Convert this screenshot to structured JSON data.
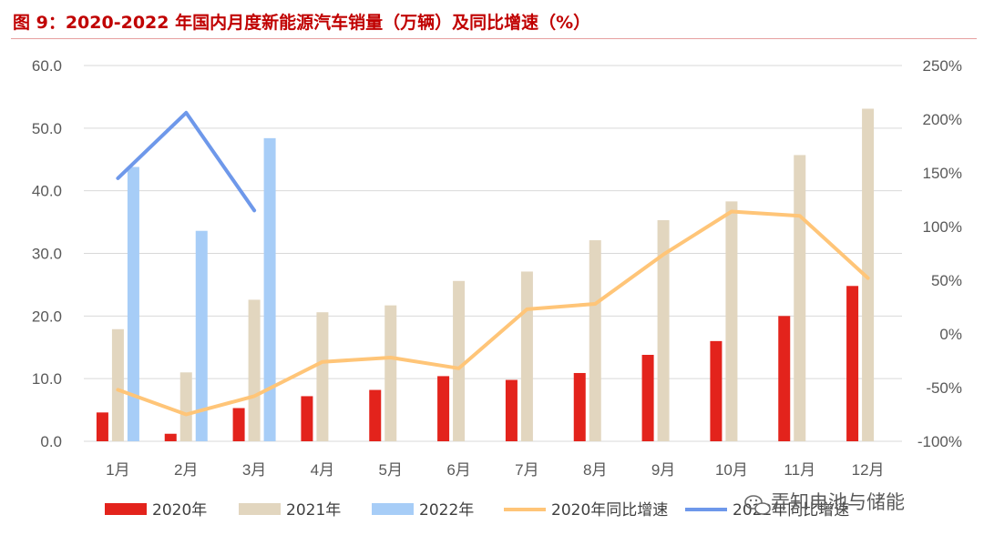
{
  "title": "图 9：2020-2022 年国内月度新能源汽车销量（万辆）及同比增速（%）",
  "watermark": "弄知电池与储能",
  "colors": {
    "s2020": "#e3231c",
    "s2021": "#e2d6bf",
    "s2022": "#a7cdf7",
    "yoy2020": "#ffc578",
    "yoy2022": "#6e98ea",
    "grid": "#d9d9d9",
    "title": "#c00000"
  },
  "chart_data": {
    "type": "bar",
    "categories": [
      "1月",
      "2月",
      "3月",
      "4月",
      "5月",
      "6月",
      "7月",
      "8月",
      "9月",
      "10月",
      "11月",
      "12月"
    ],
    "series": [
      {
        "name": "2020年",
        "type": "bar",
        "axis": "left",
        "values": [
          4.6,
          1.2,
          5.3,
          7.2,
          8.2,
          10.4,
          9.8,
          10.9,
          13.8,
          16.0,
          20.0,
          24.8
        ]
      },
      {
        "name": "2021年",
        "type": "bar",
        "axis": "left",
        "values": [
          17.9,
          11.0,
          22.6,
          20.6,
          21.7,
          25.6,
          27.1,
          32.1,
          35.3,
          38.3,
          45.7,
          53.1
        ]
      },
      {
        "name": "2022年",
        "type": "bar",
        "axis": "left",
        "values": [
          43.8,
          33.6,
          48.4,
          null,
          null,
          null,
          null,
          null,
          null,
          null,
          null,
          null
        ]
      },
      {
        "name": "2020年同比增速",
        "type": "line",
        "axis": "right",
        "values": [
          -52,
          -75,
          -58,
          -26,
          -22,
          -32,
          23,
          28,
          74,
          114,
          110,
          52
        ]
      },
      {
        "name": "2022年同比增速",
        "type": "line",
        "axis": "right",
        "values": [
          145,
          206,
          115,
          null,
          null,
          null,
          null,
          null,
          null,
          null,
          null,
          null
        ]
      }
    ],
    "y_left": {
      "min": 0,
      "max": 60,
      "ticks": [
        "0.0",
        "10.0",
        "20.0",
        "30.0",
        "40.0",
        "50.0",
        "60.0"
      ]
    },
    "y_right": {
      "min": -100,
      "max": 250,
      "ticks": [
        "-100%",
        "-50%",
        "0%",
        "50%",
        "100%",
        "150%",
        "200%",
        "250%"
      ]
    },
    "grid": true,
    "legend": "bottom"
  }
}
